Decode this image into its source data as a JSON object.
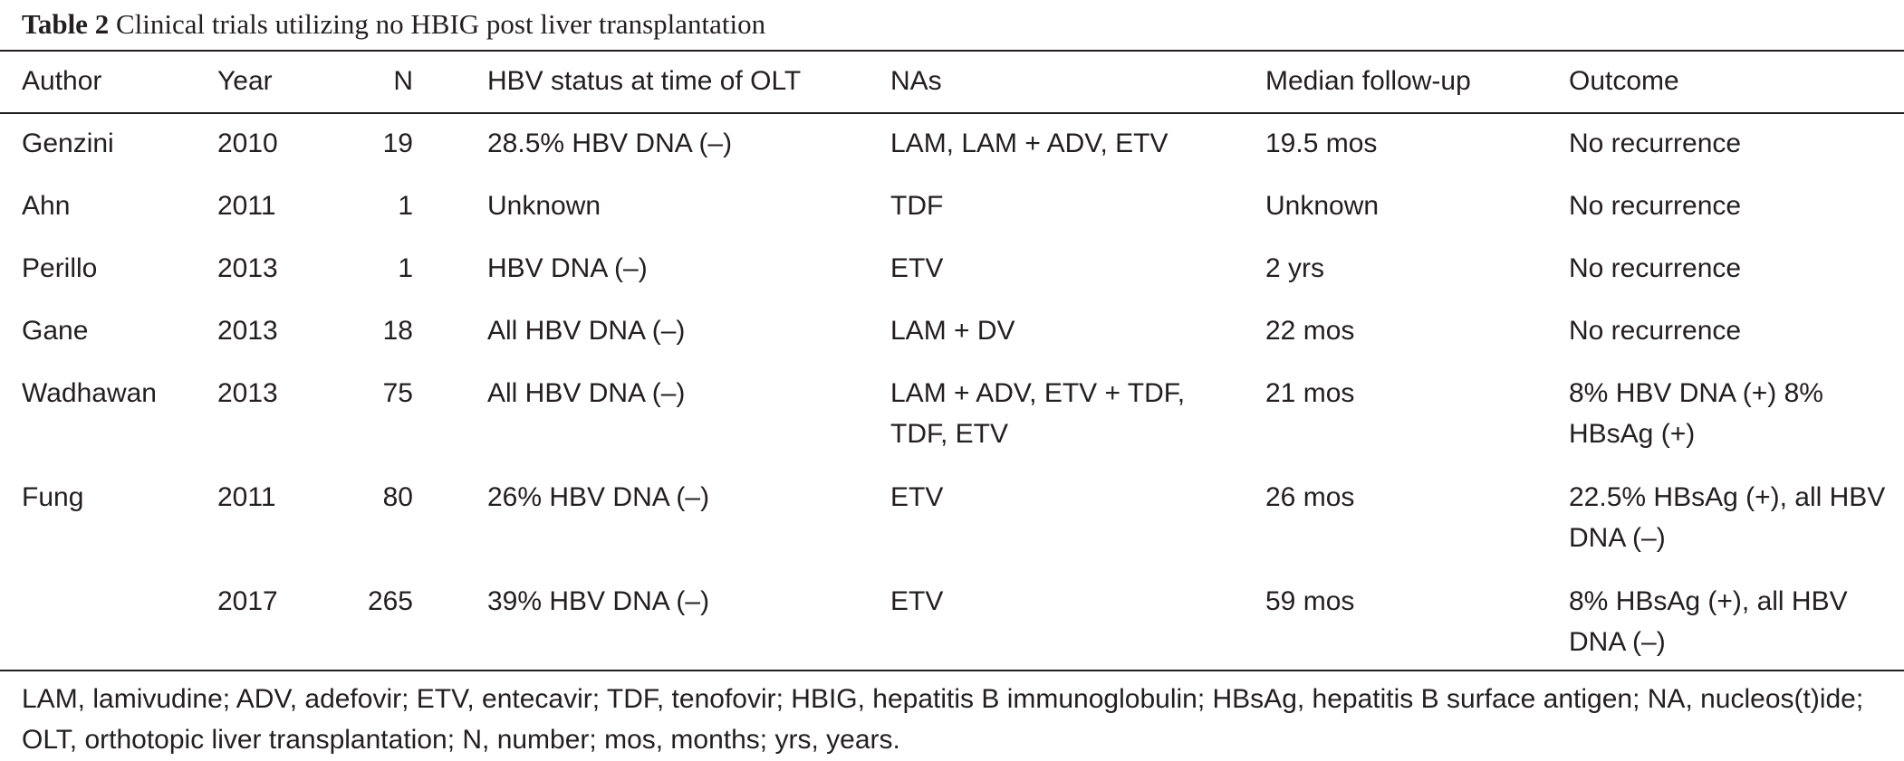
{
  "caption": {
    "label": "Table 2",
    "title": "Clinical trials utilizing no HBIG post liver transplantation"
  },
  "headers": {
    "author": "Author",
    "year": "Year",
    "n": "N",
    "status": "HBV status at time of OLT",
    "nas": "NAs",
    "follow": "Median follow-up",
    "outcome": "Outcome"
  },
  "rows": [
    {
      "author": "Genzini",
      "year": "2010",
      "n": "19",
      "status": "28.5% HBV DNA (–)",
      "nas": "LAM, LAM + ADV, ETV",
      "follow": "19.5 mos",
      "outcome": "No recurrence"
    },
    {
      "author": "Ahn",
      "year": "2011",
      "n": "1",
      "status": "Unknown",
      "nas": "TDF",
      "follow": "Unknown",
      "outcome": "No recurrence"
    },
    {
      "author": "Perillo",
      "year": "2013",
      "n": "1",
      "status": "HBV DNA (–)",
      "nas": "ETV",
      "follow": "2 yrs",
      "outcome": "No recurrence"
    },
    {
      "author": "Gane",
      "year": "2013",
      "n": "18",
      "status": "All HBV DNA (–)",
      "nas": "LAM + DV",
      "follow": "22 mos",
      "outcome": "No recurrence"
    },
    {
      "author": "Wadhawan",
      "year": "2013",
      "n": "75",
      "status": "All HBV DNA (–)",
      "nas": "LAM + ADV, ETV + TDF, TDF, ETV",
      "follow": "21 mos",
      "outcome": "8% HBV DNA (+) 8% HBsAg (+)"
    },
    {
      "author": "Fung",
      "year": "2011",
      "n": "80",
      "status": "26% HBV DNA (–)",
      "nas": "ETV",
      "follow": "26 mos",
      "outcome": "22.5% HBsAg (+), all HBV DNA (–)"
    },
    {
      "author": "",
      "year": "2017",
      "n": "265",
      "status": "39% HBV DNA (–)",
      "nas": "ETV",
      "follow": "59 mos",
      "outcome": "8% HBsAg (+), all HBV DNA (–)"
    }
  ],
  "footnote": "LAM, lamivudine; ADV, adefovir; ETV, entecavir; TDF, tenofovir; HBIG, hepatitis B immunoglobulin; HBsAg, hepatitis B surface antigen; NA, nucleos(t)ide; OLT, orthotopic liver transplantation; N, number; mos, months; yrs, years."
}
